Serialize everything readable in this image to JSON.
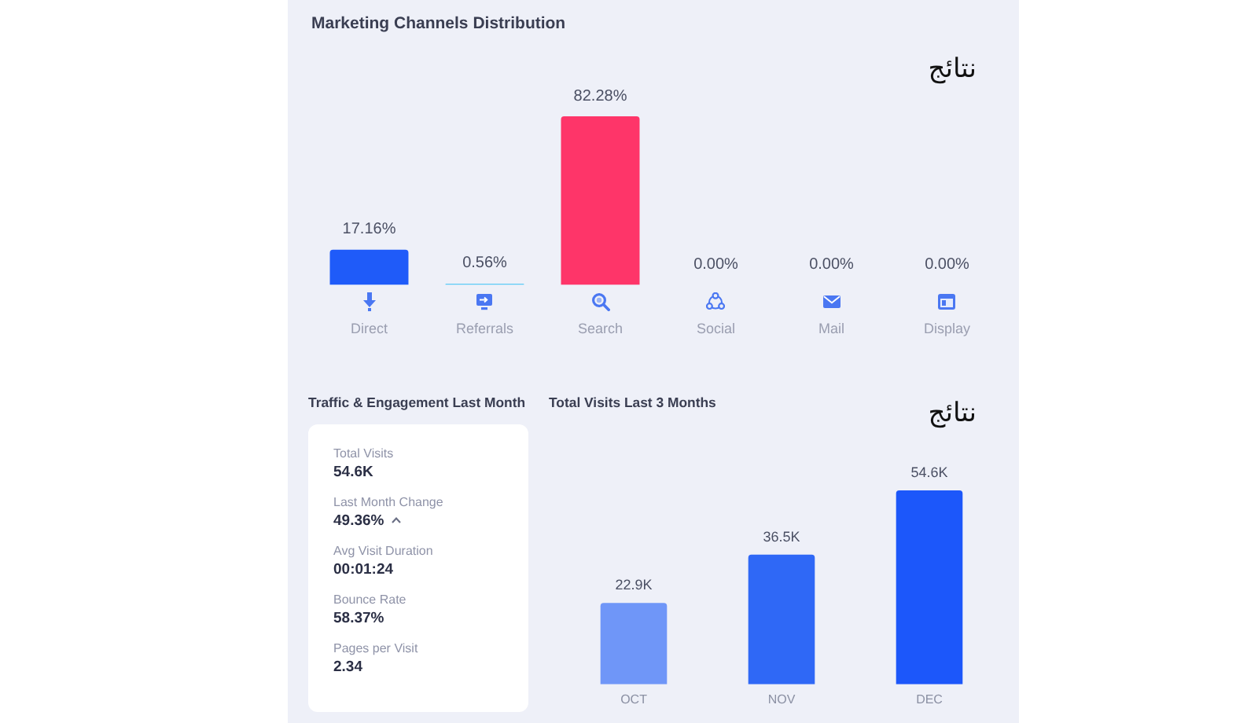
{
  "chart_data": [
    {
      "type": "bar",
      "title": "Marketing Channels Distribution",
      "categories": [
        "Direct",
        "Referrals",
        "Search",
        "Social",
        "Mail",
        "Display"
      ],
      "values": [
        17.16,
        0.56,
        82.28,
        0,
        0,
        0
      ],
      "value_labels": [
        "17.16%",
        "0.56%",
        "82.28%",
        "0.00%",
        "0.00%",
        "0.00%"
      ],
      "colors": [
        "#1f5bf9",
        "#5ccaf6",
        "#fe3569",
        "#d3d6e2",
        "#d3d6e2",
        "#d3d6e2"
      ],
      "annotations": [
        "نتائج"
      ]
    },
    {
      "type": "other",
      "title": "Traffic & Engagement Last Month",
      "categories": [
        "Total Visits",
        "Last Month Change",
        "Avg Visit Duration",
        "Bounce Rate",
        "Pages per Visit"
      ],
      "value_labels": [
        "54.6K",
        "49.36%",
        "00:01:24",
        "58.37%",
        "2.34"
      ]
    },
    {
      "type": "bar",
      "title": "Total Visits Last 3 Months",
      "categories": [
        "OCT",
        "NOV",
        "DEC"
      ],
      "values": [
        22.9,
        36.5,
        54.6
      ],
      "value_labels": [
        "22.9K",
        "36.5K",
        "54.6K"
      ],
      "colors": [
        "#6f96f8",
        "#2f68f6",
        "#1c57fa"
      ],
      "annotations": [
        "نتائج"
      ]
    }
  ]
}
